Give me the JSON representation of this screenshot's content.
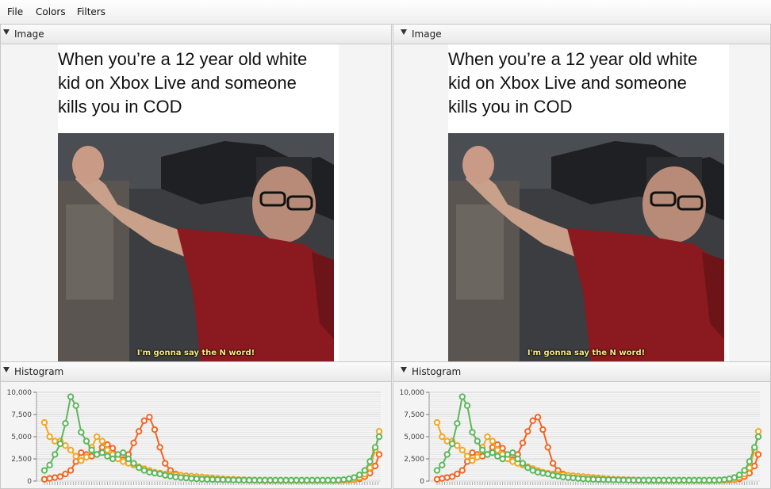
{
  "menubar": {
    "file": "File",
    "colors": "Colors",
    "filters": "Filters"
  },
  "panes": {
    "left_image_title": "Image",
    "right_image_title": "Image",
    "left_histogram_title": "Histogram",
    "right_histogram_title": "Histogram"
  },
  "meme": {
    "caption": "When you’re a 12 year old white kid on Xbox Live and someone kills you in COD",
    "subtitle": "I'm gonna say the N word!"
  },
  "colors": {
    "red": "#f26522",
    "orange": "#f5a623",
    "green": "#5cb85c"
  },
  "chart_data": {
    "type": "line",
    "ylim": [
      0,
      10000
    ],
    "yticks": [
      "0",
      "2,500",
      "5,000",
      "7,500",
      "10,000"
    ],
    "x": [
      0,
      4,
      8,
      12,
      16,
      20,
      24,
      28,
      32,
      36,
      40,
      44,
      48,
      52,
      56,
      60,
      64,
      68,
      72,
      76,
      80,
      84,
      88,
      92,
      96,
      100,
      104,
      108,
      112,
      116,
      120,
      124,
      128,
      132,
      136,
      140,
      144,
      148,
      152,
      156,
      160,
      164,
      168,
      172,
      176,
      180,
      184,
      188,
      192,
      196,
      200,
      204,
      208,
      212,
      216,
      220,
      224,
      228,
      232,
      236,
      240,
      244,
      248,
      252,
      255
    ],
    "series": [
      {
        "color_key": "red",
        "values": [
          200,
          300,
          400,
          500,
          800,
          1200,
          2200,
          3200,
          3000,
          2800,
          3000,
          3800,
          4100,
          3700,
          2900,
          2400,
          3000,
          4300,
          5600,
          6800,
          7200,
          5800,
          3800,
          2000,
          1200,
          800,
          600,
          500,
          500,
          500,
          450,
          400,
          350,
          300,
          250,
          200,
          180,
          150,
          120,
          100,
          80,
          70,
          60,
          50,
          50,
          50,
          50,
          50,
          50,
          50,
          50,
          50,
          50,
          50,
          50,
          50,
          60,
          80,
          100,
          150,
          250,
          500,
          900,
          1700,
          3000
        ]
      },
      {
        "color_key": "orange",
        "values": [
          6600,
          5000,
          4500,
          4500,
          4000,
          3500,
          2800,
          2300,
          2700,
          3800,
          5000,
          4500,
          3500,
          3000,
          2500,
          2200,
          2000,
          1800,
          1600,
          1400,
          1200,
          1000,
          900,
          800,
          750,
          700,
          650,
          600,
          550,
          500,
          450,
          400,
          350,
          300,
          250,
          220,
          200,
          180,
          160,
          140,
          120,
          110,
          100,
          90,
          80,
          70,
          60,
          60,
          60,
          60,
          60,
          60,
          60,
          60,
          60,
          60,
          70,
          90,
          120,
          200,
          400,
          800,
          1500,
          3500,
          5600
        ]
      },
      {
        "color_key": "green",
        "values": [
          1200,
          1800,
          3000,
          4200,
          6500,
          9500,
          8500,
          5500,
          4500,
          3500,
          3000,
          3200,
          2800,
          2500,
          3000,
          3200,
          2500,
          2000,
          1500,
          1200,
          1000,
          900,
          800,
          650,
          550,
          450,
          400,
          350,
          300,
          250,
          220,
          200,
          180,
          160,
          150,
          140,
          130,
          120,
          110,
          100,
          100,
          100,
          100,
          100,
          100,
          100,
          100,
          100,
          100,
          100,
          100,
          100,
          100,
          100,
          100,
          100,
          120,
          160,
          250,
          400,
          700,
          1200,
          2200,
          3800,
          5000
        ]
      }
    ]
  }
}
